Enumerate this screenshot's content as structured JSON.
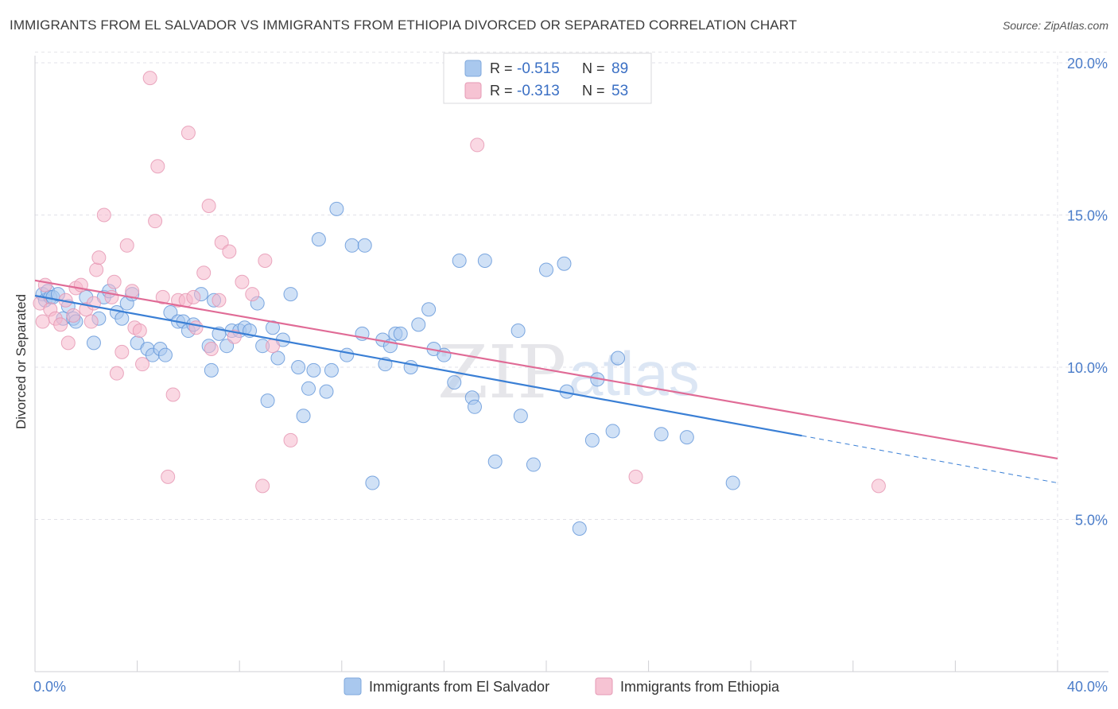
{
  "title": "IMMIGRANTS FROM EL SALVADOR VS IMMIGRANTS FROM ETHIOPIA DIVORCED OR SEPARATED CORRELATION CHART",
  "source": "Source: ZipAtlas.com",
  "watermark": {
    "zip": "ZIP",
    "atlas": "atlas"
  },
  "colors": {
    "blue_fill": "#a9c8ee",
    "blue_line": "#3a7fd5",
    "pink_fill": "#f6b8cc",
    "pink_line": "#e06b96",
    "tick_text": "#4a7cc9",
    "grid": "#e2e2e8"
  },
  "legend": {
    "rows": [
      {
        "r_label": "R =",
        "r_value": "-0.515",
        "n_label": "N =",
        "n_value": "89"
      },
      {
        "r_label": "R =",
        "r_value": "-0.313",
        "n_label": "N =",
        "n_value": "53"
      }
    ]
  },
  "chart_data": {
    "type": "scatter",
    "title": "IMMIGRANTS FROM EL SALVADOR VS IMMIGRANTS FROM ETHIOPIA DIVORCED OR SEPARATED CORRELATION CHART",
    "xlabel": "",
    "ylabel": "Divorced or Separated",
    "xlim": [
      0,
      40
    ],
    "ylim": [
      0,
      20.5
    ],
    "x_tick_labels": [
      "0.0%",
      "40.0%"
    ],
    "y_ticks": [
      5,
      10,
      15,
      20
    ],
    "y_tick_labels": [
      "5.0%",
      "10.0%",
      "15.0%",
      "20.0%"
    ],
    "grid": true,
    "legend_position": "top-center",
    "series": [
      {
        "name": "Immigrants from El Salvador",
        "color": "#a9c8ee",
        "trend": {
          "x0": 0,
          "y0": 12.35,
          "x1": 30.0,
          "y1": 7.75,
          "dash_to_x": 40,
          "dash_to_y": 6.2
        },
        "points": [
          [
            0.3,
            12.4
          ],
          [
            0.4,
            12.2
          ],
          [
            0.5,
            12.5
          ],
          [
            0.6,
            12.3
          ],
          [
            0.7,
            12.3
          ],
          [
            0.9,
            12.4
          ],
          [
            1.1,
            11.6
          ],
          [
            1.3,
            12.0
          ],
          [
            1.5,
            11.6
          ],
          [
            1.6,
            11.5
          ],
          [
            2.0,
            12.3
          ],
          [
            2.3,
            10.8
          ],
          [
            2.5,
            11.6
          ],
          [
            2.7,
            12.3
          ],
          [
            2.9,
            12.5
          ],
          [
            3.2,
            11.8
          ],
          [
            3.4,
            11.6
          ],
          [
            3.6,
            12.1
          ],
          [
            3.8,
            12.4
          ],
          [
            4.0,
            10.8
          ],
          [
            4.4,
            10.6
          ],
          [
            4.6,
            10.4
          ],
          [
            4.9,
            10.6
          ],
          [
            5.1,
            10.4
          ],
          [
            5.3,
            11.8
          ],
          [
            5.6,
            11.5
          ],
          [
            5.8,
            11.5
          ],
          [
            6.0,
            11.2
          ],
          [
            6.2,
            11.4
          ],
          [
            6.5,
            12.4
          ],
          [
            6.8,
            10.7
          ],
          [
            6.9,
            9.9
          ],
          [
            7.0,
            12.2
          ],
          [
            7.2,
            11.1
          ],
          [
            7.5,
            10.7
          ],
          [
            7.7,
            11.2
          ],
          [
            8.0,
            11.2
          ],
          [
            8.2,
            11.3
          ],
          [
            8.4,
            11.2
          ],
          [
            8.7,
            12.1
          ],
          [
            8.9,
            10.7
          ],
          [
            9.1,
            8.9
          ],
          [
            9.3,
            11.3
          ],
          [
            9.5,
            10.3
          ],
          [
            9.7,
            10.9
          ],
          [
            10.0,
            12.4
          ],
          [
            10.3,
            10.0
          ],
          [
            10.5,
            8.4
          ],
          [
            10.7,
            9.3
          ],
          [
            10.9,
            9.9
          ],
          [
            11.1,
            14.2
          ],
          [
            11.4,
            9.2
          ],
          [
            11.6,
            9.9
          ],
          [
            11.8,
            15.2
          ],
          [
            12.2,
            10.4
          ],
          [
            12.4,
            14.0
          ],
          [
            12.8,
            11.1
          ],
          [
            12.9,
            14.0
          ],
          [
            13.2,
            6.2
          ],
          [
            13.6,
            10.9
          ],
          [
            13.7,
            10.1
          ],
          [
            13.9,
            10.7
          ],
          [
            14.1,
            11.1
          ],
          [
            14.3,
            11.1
          ],
          [
            14.7,
            10.0
          ],
          [
            15.0,
            11.4
          ],
          [
            15.4,
            11.9
          ],
          [
            15.6,
            10.6
          ],
          [
            16.0,
            10.4
          ],
          [
            16.4,
            9.5
          ],
          [
            16.6,
            13.5
          ],
          [
            17.1,
            9.0
          ],
          [
            17.2,
            8.7
          ],
          [
            17.6,
            13.5
          ],
          [
            18.0,
            6.9
          ],
          [
            18.9,
            11.2
          ],
          [
            19.0,
            8.4
          ],
          [
            19.5,
            6.8
          ],
          [
            20.0,
            13.2
          ],
          [
            20.7,
            13.4
          ],
          [
            20.8,
            9.2
          ],
          [
            21.3,
            4.7
          ],
          [
            21.8,
            7.6
          ],
          [
            22.0,
            9.6
          ],
          [
            22.6,
            7.9
          ],
          [
            22.8,
            10.3
          ],
          [
            24.5,
            7.8
          ],
          [
            25.5,
            7.7
          ],
          [
            27.3,
            6.2
          ]
        ]
      },
      {
        "name": "Immigrants from Ethiopia",
        "color": "#f6b8cc",
        "trend": {
          "x0": 0,
          "y0": 12.85,
          "x1": 40,
          "y1": 7.0
        },
        "points": [
          [
            0.2,
            12.1
          ],
          [
            0.3,
            11.5
          ],
          [
            0.4,
            12.7
          ],
          [
            0.6,
            11.9
          ],
          [
            0.8,
            11.6
          ],
          [
            1.0,
            11.4
          ],
          [
            1.2,
            12.2
          ],
          [
            1.3,
            10.8
          ],
          [
            1.5,
            11.7
          ],
          [
            1.6,
            12.6
          ],
          [
            1.8,
            12.7
          ],
          [
            2.0,
            11.9
          ],
          [
            2.2,
            11.5
          ],
          [
            2.3,
            12.1
          ],
          [
            2.4,
            13.2
          ],
          [
            2.5,
            13.6
          ],
          [
            2.7,
            15.0
          ],
          [
            3.0,
            12.3
          ],
          [
            3.1,
            12.8
          ],
          [
            3.2,
            9.8
          ],
          [
            3.4,
            10.5
          ],
          [
            3.6,
            14.0
          ],
          [
            3.8,
            12.5
          ],
          [
            3.9,
            11.3
          ],
          [
            4.1,
            11.2
          ],
          [
            4.2,
            10.1
          ],
          [
            4.5,
            19.5
          ],
          [
            4.7,
            14.8
          ],
          [
            4.8,
            16.6
          ],
          [
            5.0,
            12.3
          ],
          [
            5.2,
            6.4
          ],
          [
            5.4,
            9.1
          ],
          [
            5.6,
            12.2
          ],
          [
            5.9,
            12.2
          ],
          [
            6.0,
            17.7
          ],
          [
            6.2,
            12.3
          ],
          [
            6.3,
            11.3
          ],
          [
            6.6,
            13.1
          ],
          [
            6.8,
            15.3
          ],
          [
            6.9,
            10.6
          ],
          [
            7.2,
            12.2
          ],
          [
            7.3,
            14.1
          ],
          [
            7.6,
            13.8
          ],
          [
            7.8,
            11.0
          ],
          [
            8.1,
            12.8
          ],
          [
            8.5,
            12.4
          ],
          [
            8.9,
            6.1
          ],
          [
            9.0,
            13.5
          ],
          [
            9.3,
            10.7
          ],
          [
            10.0,
            7.6
          ],
          [
            17.3,
            17.3
          ],
          [
            23.5,
            6.4
          ],
          [
            33.0,
            6.1
          ]
        ]
      }
    ]
  },
  "bottom_legend": [
    {
      "label": "Immigrants from El Salvador"
    },
    {
      "label": "Immigrants from Ethiopia"
    }
  ]
}
